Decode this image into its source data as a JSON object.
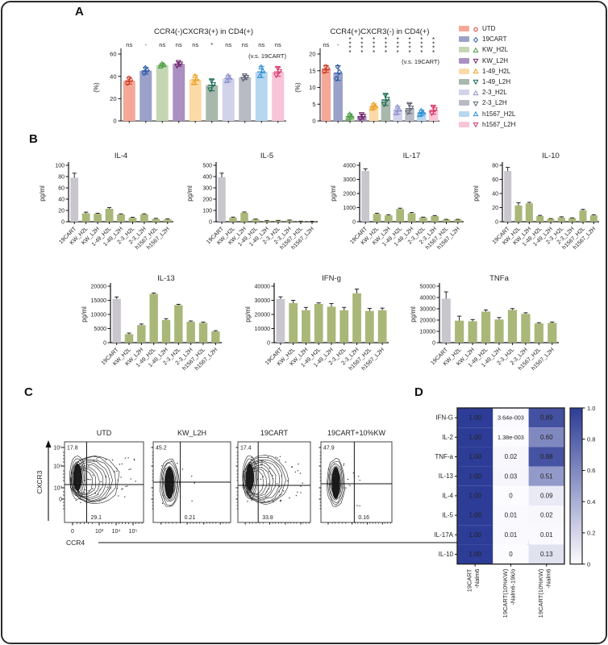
{
  "figure": {
    "panel_labels": {
      "a": "A",
      "b": "B",
      "c": "C",
      "d": "D"
    },
    "border_color": "#2b2b2b",
    "background": "#ffffff"
  },
  "legend": {
    "items": [
      {
        "label": "UTD",
        "marker": "circle",
        "fill": "#f5a898",
        "stroke": "#cc3927"
      },
      {
        "label": "19CART",
        "marker": "diamond",
        "fill": "#9aa2ca",
        "stroke": "#2b5aa5"
      },
      {
        "label": "KW_H2L",
        "marker": "tri-up",
        "fill": "#c5d7b2",
        "stroke": "#4a9e45"
      },
      {
        "label": "KW_L2H",
        "marker": "tri-down",
        "fill": "#aa90c2",
        "stroke": "#73286e"
      },
      {
        "label": "1-49_H2L",
        "marker": "tri-up",
        "fill": "#fcdaa7",
        "stroke": "#eda225"
      },
      {
        "label": "1-49_L2H",
        "marker": "tri-down",
        "fill": "#a8b8ac",
        "stroke": "#186a50"
      },
      {
        "label": "2-3_H2L",
        "marker": "tri-up",
        "fill": "#d2d3eb",
        "stroke": "#8e92cf"
      },
      {
        "label": "2-3_L2H",
        "marker": "tri-down",
        "fill": "#b8bbc4",
        "stroke": "#5f6673"
      },
      {
        "label": "h1567_H2L",
        "marker": "tri-up",
        "fill": "#b7d7f1",
        "stroke": "#2e8fd5"
      },
      {
        "label": "h1567_L2H",
        "marker": "tri-down",
        "fill": "#f9c4d7",
        "stroke": "#d63768"
      }
    ]
  },
  "chart_data": [
    {
      "id": "a1",
      "type": "bar",
      "title": "CCR4(-)CXCR3(+) in CD4(+)",
      "ylabel": "(%)",
      "ylim": [
        0,
        60
      ],
      "yticks": [
        0,
        20,
        40,
        60
      ],
      "categories": [
        "UTD",
        "19CART",
        "KW_H2L",
        "KW_L2H",
        "1-49_H2L",
        "1-49_L2H",
        "2-3_H2L",
        "2-3_L2H",
        "h1567_H2L",
        "h1567_L2H"
      ],
      "values": [
        36,
        45,
        50,
        51,
        37,
        32,
        38,
        39,
        44,
        44
      ],
      "errors": [
        3,
        3,
        1.5,
        2,
        4,
        5,
        3,
        2,
        5,
        4
      ],
      "annotations": [
        "ns",
        "-",
        "ns",
        "ns",
        "ns",
        "*",
        "ns",
        "ns",
        "ns",
        "ns"
      ],
      "note": "(v.s. 19CART)"
    },
    {
      "id": "a2",
      "type": "bar",
      "title": "CCR4(+)CXCR3(-) in CD4(+)",
      "ylabel": "(%)",
      "ylim": [
        0,
        20
      ],
      "yticks": [
        0,
        5,
        10,
        15,
        20
      ],
      "categories": [
        "UTD",
        "19CART",
        "KW_H2L",
        "KW_L2H",
        "1-49_H2L",
        "1-49_L2H",
        "2-3_H2L",
        "2-3_L2H",
        "h1567_H2L",
        "h1567_L2H"
      ],
      "values": [
        15.5,
        14.3,
        1.3,
        1.3,
        4.3,
        6.3,
        3.2,
        3.7,
        2.4,
        3.2
      ],
      "errors": [
        1,
        2.2,
        0.8,
        0.8,
        0.8,
        1.7,
        1.2,
        1.5,
        0.8,
        1.2
      ],
      "annotations": [
        "ns",
        "-",
        "****",
        "****",
        "****",
        "****",
        "****",
        "****",
        "****",
        "****"
      ],
      "note": "(v.s. 19CART)"
    },
    {
      "id": "il4",
      "type": "bar",
      "title": "IL-4",
      "ylabel": "pg/ml",
      "ylim": [
        0,
        100
      ],
      "yticks": [
        0,
        20,
        40,
        60,
        80,
        100
      ],
      "categories": [
        "19CART",
        "KW_H2L",
        "KW_L2H",
        "1-49_H2L",
        "1-49_L2H",
        "2-3_H2L",
        "2-3_L2H",
        "h1567_H2L",
        "h1567_L2H"
      ],
      "values": [
        78,
        15,
        14,
        23,
        13,
        7,
        13,
        5,
        4
      ],
      "errors": [
        8,
        2,
        1,
        2,
        1,
        1,
        1,
        1,
        1
      ]
    },
    {
      "id": "il5",
      "type": "bar",
      "title": "IL-5",
      "ylabel": "pg/ml",
      "ylim": [
        0,
        500
      ],
      "yticks": [
        0,
        100,
        200,
        300,
        400,
        500
      ],
      "categories": [
        "19CART",
        "KW_H2L",
        "KW_L2H",
        "1-49_H2L",
        "1-49_L2H",
        "2-3_H2L",
        "2-3_L2H",
        "h1567_H2L",
        "h1567_L2H"
      ],
      "values": [
        395,
        35,
        80,
        20,
        8,
        10,
        12,
        4,
        3
      ],
      "errors": [
        35,
        6,
        6,
        4,
        2,
        2,
        3,
        1,
        1
      ]
    },
    {
      "id": "il17",
      "type": "bar",
      "title": "IL-17",
      "ylabel": "pg/ml",
      "ylim": [
        0,
        4000
      ],
      "yticks": [
        0,
        1000,
        2000,
        3000,
        4000
      ],
      "categories": [
        "19CART",
        "KW_H2L",
        "KW_L2H",
        "1-49_H2L",
        "1-49_L2H",
        "2-3_H2L",
        "2-3_L2H",
        "h1567_H2L",
        "h1567_L2H"
      ],
      "values": [
        3600,
        550,
        450,
        900,
        600,
        300,
        400,
        150,
        150
      ],
      "errors": [
        150,
        50,
        50,
        60,
        50,
        30,
        40,
        20,
        20
      ]
    },
    {
      "id": "il10",
      "type": "bar",
      "title": "IL-10",
      "ylabel": "pg/ml",
      "ylim": [
        0,
        80
      ],
      "yticks": [
        0,
        20,
        40,
        60,
        80
      ],
      "categories": [
        "19CART",
        "KW_H2L",
        "KW_L2H",
        "1-49_H2L",
        "1-49_L2H",
        "2-3_H2L",
        "2-3_L2H",
        "h1567_H2L",
        "h1567_L2H"
      ],
      "values": [
        72,
        23,
        26,
        8,
        4,
        6,
        5,
        16,
        9
      ],
      "errors": [
        5,
        4,
        1.5,
        1,
        0.5,
        1,
        0.5,
        1.5,
        1
      ]
    },
    {
      "id": "il13",
      "type": "bar",
      "title": "IL-13",
      "ylabel": "pg/ml",
      "ylim": [
        0,
        20000
      ],
      "yticks": [
        0,
        5000,
        10000,
        15000,
        20000
      ],
      "categories": [
        "19CART",
        "KW_H2L",
        "KW_L2H",
        "1-49_H2L",
        "1-49_L2H",
        "2-3_H2L",
        "2-3_L2H",
        "h1567_H2L",
        "h1567_L2H"
      ],
      "values": [
        15500,
        3000,
        6200,
        17300,
        8000,
        13300,
        7400,
        7000,
        4000
      ],
      "errors": [
        700,
        400,
        400,
        300,
        500,
        300,
        300,
        300,
        250
      ]
    },
    {
      "id": "ifng",
      "type": "bar",
      "title": "IFN-g",
      "ylabel": "pg/ml",
      "ylim": [
        0,
        40000
      ],
      "yticks": [
        0,
        10000,
        20000,
        30000,
        40000
      ],
      "categories": [
        "19CART",
        "KW_H2L",
        "KW_L2H",
        "1-49_H2L",
        "1-49_L2H",
        "2-3_H2L",
        "2-3_L2H",
        "h1567_H2L",
        "h1567_L2H"
      ],
      "values": [
        31000,
        28000,
        23000,
        27500,
        25500,
        23000,
        35000,
        22500,
        23000
      ],
      "errors": [
        1500,
        2000,
        2000,
        700,
        2200,
        2000,
        3000,
        1800,
        1500
      ]
    },
    {
      "id": "tnfa",
      "type": "bar",
      "title": "TNFa",
      "ylabel": "pg/ml",
      "ylim": [
        0,
        50000
      ],
      "yticks": [
        0,
        10000,
        20000,
        30000,
        40000,
        50000
      ],
      "categories": [
        "19CART",
        "KW_H2L",
        "KW_L2H",
        "1-49_H2L",
        "1-49_L2H",
        "2-3_H2L",
        "2-3_L2H",
        "h1567_H2L",
        "h1567_L2H"
      ],
      "values": [
        39000,
        19500,
        19000,
        27500,
        20500,
        29000,
        25500,
        17000,
        17500
      ],
      "errors": [
        6000,
        4000,
        1500,
        1500,
        1800,
        1200,
        1000,
        700,
        800
      ]
    },
    {
      "id": "flow",
      "type": "scatter",
      "title": "CCR4/CXCR3 flow cytometry in CD4(+)",
      "xlabel": "CCR4",
      "ylabel": "CXCR3",
      "xticks": [
        "0",
        "10³",
        "10⁴",
        "10⁵"
      ],
      "yticks": [
        "10⁵",
        "10⁴",
        "10³",
        "0"
      ],
      "plots": [
        {
          "title": "UTD",
          "top_left_pct": "17.8",
          "bottom_pct": "29.1",
          "population": "wide"
        },
        {
          "title": "KW_L2H",
          "top_left_pct": "45.2",
          "bottom_pct": "0.21",
          "population": "narrow"
        },
        {
          "title": "19CART",
          "top_left_pct": "17.4",
          "bottom_pct": "33.8",
          "population": "wide"
        },
        {
          "title": "19CART+10%KW",
          "top_left_pct": "47.9",
          "bottom_pct": "0.16",
          "population": "narrow"
        }
      ]
    },
    {
      "id": "heat",
      "type": "heatmap",
      "rows": [
        "IFN-G",
        "IL-2",
        "TNF-a",
        "IL-13",
        "IL-4",
        "IL-5",
        "IL-17A",
        "IL-10"
      ],
      "columns": [
        [
          "19CART",
          "-Nalm6"
        ],
        [
          "19CART(10%KW)",
          "-Nalm6-19k/o"
        ],
        [
          "19CART(10%KW)",
          "-Nalm6"
        ]
      ],
      "values": [
        [
          1,
          0.00364,
          0.89
        ],
        [
          1,
          0.00138,
          0.6
        ],
        [
          1,
          0.02,
          0.88
        ],
        [
          1,
          0.03,
          0.51
        ],
        [
          1,
          0,
          0.09
        ],
        [
          1,
          0.01,
          0.02
        ],
        [
          1,
          0.01,
          0.01
        ],
        [
          1,
          0,
          0.13
        ]
      ],
      "labels": [
        [
          "1.00",
          "3.64e-003",
          "0.89"
        ],
        [
          "1.00",
          "1.38e-003",
          "0.60"
        ],
        [
          "1.00",
          "0.02",
          "0.88"
        ],
        [
          "1.00",
          "0.03",
          "0.51"
        ],
        [
          "1.00",
          "0",
          "0.09"
        ],
        [
          "1.00",
          "0.01",
          "0.02"
        ],
        [
          "1.00",
          "0.01",
          "0.01"
        ],
        [
          "1.00",
          "0",
          "0.13"
        ]
      ],
      "colorbar_ticks": [
        "1.0",
        "0.8",
        "0.6",
        "0.4",
        "0.2",
        "0"
      ],
      "color_low": "#fcfbfe",
      "color_high": "#2d3c96"
    }
  ]
}
